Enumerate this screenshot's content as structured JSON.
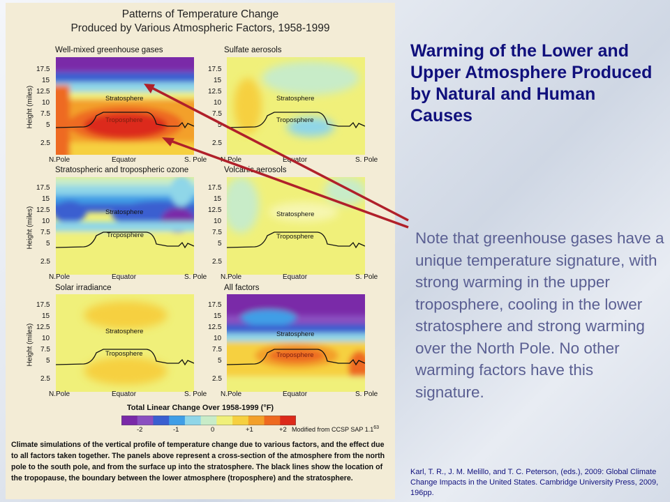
{
  "figure": {
    "title_line1": "Patterns of Temperature Change",
    "title_line2": "Produced by Various Atmospheric Factors, 1958-1999",
    "panels": [
      {
        "title": "Well-mixed greenhouse gases"
      },
      {
        "title": "Sulfate aerosols"
      },
      {
        "title": "Stratospheric and tropospheric ozone"
      },
      {
        "title": "Volcanic aerosols"
      },
      {
        "title": "Solar irradiance"
      },
      {
        "title": "All factors"
      }
    ],
    "y_axis_title": "Height (miles)",
    "y_ticks": [
      "17.5",
      "15",
      "12.5",
      "10",
      "7.5",
      "5",
      "2.5"
    ],
    "x_labels": {
      "left": "N.Pole",
      "center": "Equator",
      "right": "S. Pole"
    },
    "stratosphere_label": "Stratosphere",
    "troposphere_label": "Troposphere",
    "troposphere_label_alt": "Trcposphere",
    "colorbar": {
      "title": "Total Linear Change Over 1958-1999 (°F)",
      "ticks": [
        "-2",
        "-1",
        "0",
        "+1",
        "+2"
      ],
      "colors": [
        "#7a2aa8",
        "#8a4fc0",
        "#3a5fd0",
        "#3f9ee6",
        "#8fd6e8",
        "#c8ecc8",
        "#f0f07a",
        "#f6d040",
        "#f3a02a",
        "#ee6a20",
        "#dc2a1a"
      ]
    },
    "credit": "Modified from CCSP SAP 1.1",
    "credit_superscript": "63",
    "caption": "Climate simulations of the vertical profile of temperature change due to various factors, and the effect due to all factors taken together. The panels above represent a cross-section of the atmosphere from the north pole to the south pole, and from the surface up into the stratosphere. The black lines show the location of the tropopause, the boundary between the lower atmosphere (troposphere) and the stratosphere."
  },
  "slide": {
    "title": "Warming of the Lower and Upper Atmosphere Produced by Natural and Human Causes",
    "note": "Note that greenhouse gases have a unique temperature signature, with strong warming in the upper troposphere, cooling in the lower stratosphere and strong warming over the North Pole. No other warming factors have this signature.",
    "reference": "Karl, T. R., J. M. Melillo, and T. C. Peterson, (eds.), 2009: Global Climate Change Impacts in the United States. Cambridge University Press, 2009, 196pp.",
    "arrow_color": "#b0202a"
  }
}
